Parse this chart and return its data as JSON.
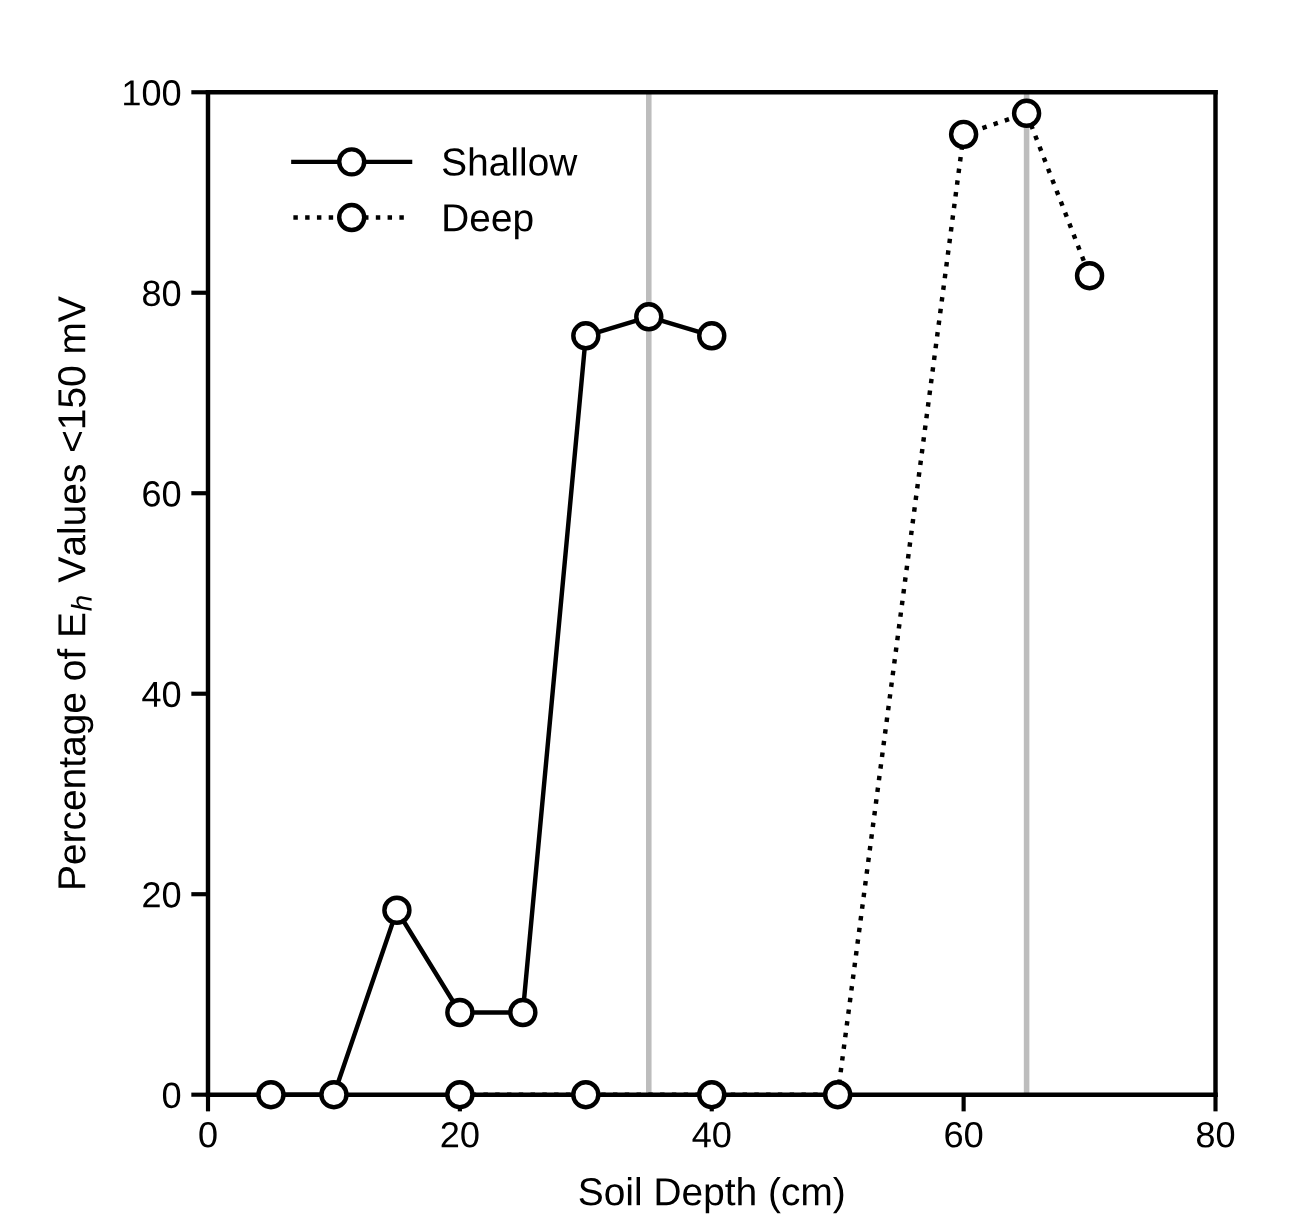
{
  "chart_data": {
    "type": "line",
    "xlabel": "Soil Depth (cm)",
    "ylabel": "Percentage of E$_{h}$ Values <150 mV",
    "xlim": [
      0,
      80
    ],
    "xticks": [
      0,
      20,
      40,
      60,
      80
    ],
    "ylim": [
      0,
      100
    ],
    "yticks": [
      0,
      20,
      40,
      60,
      80,
      100
    ],
    "grid": false,
    "legend": "top left",
    "marker": "circle",
    "series": [
      {
        "name": "Shallow",
        "color": "#000000",
        "line_style": "solid",
        "x": [
          5,
          10,
          15,
          20,
          25,
          30,
          35,
          40
        ],
        "values": [
          0,
          0,
          18.4,
          8.2,
          8.2,
          75.7,
          77.6,
          75.7
        ]
      },
      {
        "name": "Deep",
        "color": "#000000",
        "line_style": "dotted",
        "x": [
          20,
          30,
          40,
          50,
          60,
          65,
          70
        ],
        "values": [
          0,
          0,
          0,
          0,
          95.8,
          97.9,
          81.7
        ]
      }
    ],
    "ref_lines": [
      {
        "axis": "x",
        "value": 35,
        "color": "#bdbdbd",
        "line_style": "solid"
      },
      {
        "axis": "x",
        "value": 65,
        "color": "#bdbdbd",
        "line_style": "solid"
      }
    ]
  }
}
